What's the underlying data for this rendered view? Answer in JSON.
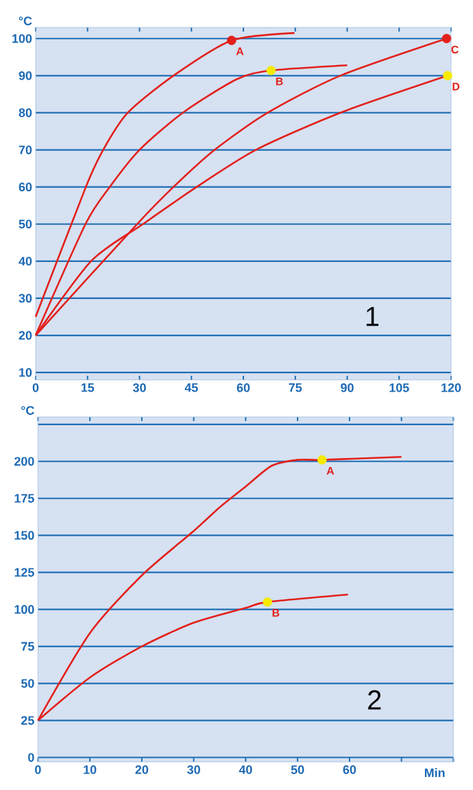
{
  "chart_data": [
    {
      "type": "line",
      "ylabel": "°C",
      "xlim": [
        0,
        120
      ],
      "ylim": [
        8,
        103
      ],
      "xticks": [
        0,
        15,
        30,
        45,
        60,
        75,
        90,
        105,
        120
      ],
      "yticks": [
        10,
        20,
        30,
        40,
        50,
        60,
        70,
        80,
        90,
        100
      ],
      "grid": "y",
      "series": [
        {
          "type": "line",
          "color": "#e3201b",
          "x": [
            0,
            14.5,
            19.5,
            26.6,
            39.8,
            56.6,
            74.8
          ],
          "values": [
            25,
            60,
            70,
            80,
            90,
            99.5,
            101.5
          ]
        },
        {
          "type": "line",
          "color": "#e3201b",
          "x": [
            0,
            14.4,
            21.4,
            30,
            42.5,
            58,
            68,
            90
          ],
          "values": [
            20,
            50,
            60,
            70,
            80,
            89,
            91.4,
            92.8
          ]
        },
        {
          "type": "line",
          "color": "#e3201b",
          "x": [
            0,
            29.3,
            39.8,
            51.7,
            67,
            88,
            118.7
          ],
          "values": [
            20,
            50,
            60,
            70,
            80,
            90,
            100
          ]
        },
        {
          "type": "line",
          "color": "#e3201b",
          "x": [
            0,
            16,
            31,
            46.5,
            63.6,
            88,
            119
          ],
          "values": [
            20,
            40,
            50,
            60,
            70,
            80,
            90
          ]
        },
        {
          "type": "scatter",
          "marker": "circle",
          "x": [
            56.6,
            68,
            118.7,
            119
          ],
          "values": [
            99.5,
            91.4,
            100,
            90
          ],
          "colors": [
            "#e3201b",
            "#f5ea00",
            "#e3201b",
            "#f5ea00"
          ]
        }
      ],
      "annotations": [
        {
          "text": "A",
          "x": 56.6,
          "y": 99.5
        },
        {
          "text": "B",
          "x": 68,
          "y": 91.4
        },
        {
          "text": "C",
          "x": 118.7,
          "y": 100
        },
        {
          "text": "D",
          "x": 119,
          "y": 90
        },
        "1"
      ]
    },
    {
      "type": "line",
      "ylabel": "°C",
      "xlabel": "Min",
      "xlim": [
        0,
        80
      ],
      "ylim": [
        -3,
        230
      ],
      "xticks": [
        0,
        10,
        20,
        30,
        40,
        50,
        60,
        {
          "value": 70,
          "label": null
        },
        {
          "value": 80,
          "label": null
        }
      ],
      "yticks": [
        0,
        25,
        50,
        75,
        100,
        125,
        150,
        175,
        200,
        {
          "value": 225,
          "label": null
        }
      ],
      "grid": "y",
      "series": [
        {
          "type": "line",
          "color": "#e3201b",
          "x": [
            0,
            10,
            20,
            30,
            35,
            40,
            45,
            50,
            54.7,
            70
          ],
          "values": [
            25,
            84,
            123,
            153,
            169,
            183,
            197,
            201,
            201,
            203
          ]
        },
        {
          "type": "line",
          "color": "#e3201b",
          "x": [
            0,
            10,
            20,
            30,
            40,
            44.2,
            59.7
          ],
          "values": [
            25,
            54,
            75,
            91,
            101,
            105,
            110
          ]
        },
        {
          "type": "scatter",
          "marker": "circle",
          "x": [
            54.7,
            44.2
          ],
          "values": [
            201,
            105
          ],
          "colors": [
            "#f5ea00",
            "#f5ea00"
          ]
        }
      ],
      "annotations": [
        {
          "text": "A",
          "x": 54.7,
          "y": 201
        },
        {
          "text": "B",
          "x": 44.2,
          "y": 105
        },
        "2"
      ]
    }
  ]
}
